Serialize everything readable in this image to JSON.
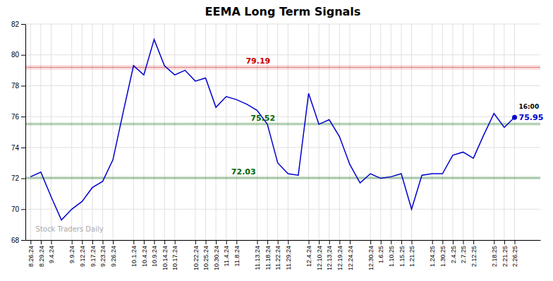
{
  "chart_data": {
    "type": "line",
    "title": "EEMA Long Term Signals",
    "categories": [
      "8.26.24",
      "8.29.24",
      "9.4.24",
      null,
      "9.9.24",
      "9.12.24",
      "9.17.24",
      "9.23.24",
      "9.26.24",
      null,
      "10.1.24",
      "10.4.24",
      "10.9.24",
      "10.14.24",
      "10.17.24",
      null,
      "10.22.24",
      "10.25.24",
      "10.30.24",
      "11.4.24",
      "11.8.24",
      null,
      "11.13.24",
      "11.18.24",
      "11.22.24",
      "11.29.24",
      null,
      "12.4.24",
      "12.10.24",
      "12.13.24",
      "12.19.24",
      "12.24.24",
      null,
      "12.30.24",
      "1.6.25",
      "1.10.25",
      "1.15.25",
      "1.21.25",
      null,
      "1.24.25",
      "1.30.25",
      "2.4.25",
      "2.7.25",
      "2.12.25",
      null,
      "2.18.25",
      "2.21.25",
      "2.26.25"
    ],
    "values": [
      72.1,
      72.4,
      70.8,
      69.3,
      70.0,
      70.5,
      71.4,
      71.8,
      73.2,
      76.3,
      79.3,
      78.7,
      81.0,
      79.3,
      78.7,
      79.0,
      78.3,
      78.5,
      76.6,
      77.3,
      77.1,
      76.8,
      76.4,
      75.5,
      73.0,
      72.3,
      72.2,
      77.5,
      75.5,
      75.8,
      74.7,
      72.9,
      71.7,
      72.3,
      72.0,
      72.1,
      72.3,
      70.0,
      72.2,
      72.3,
      72.3,
      73.5,
      73.7,
      73.3,
      74.8,
      76.2,
      75.3,
      75.95
    ],
    "color": "#0000cc",
    "reference_lines": [
      {
        "value": 79.19,
        "label": "79.19",
        "color": "#cc0000"
      },
      {
        "value": 75.52,
        "label": "75.52",
        "color": "#006600"
      },
      {
        "value": 72.03,
        "label": "72.03",
        "color": "#006600"
      }
    ],
    "last_label": "16:00",
    "last_value": 75.95,
    "watermark": "Stock Traders Daily",
    "ylim": [
      68,
      82
    ],
    "yticks": [
      68,
      70,
      72,
      74,
      76,
      78,
      80,
      82
    ],
    "grid": true
  }
}
